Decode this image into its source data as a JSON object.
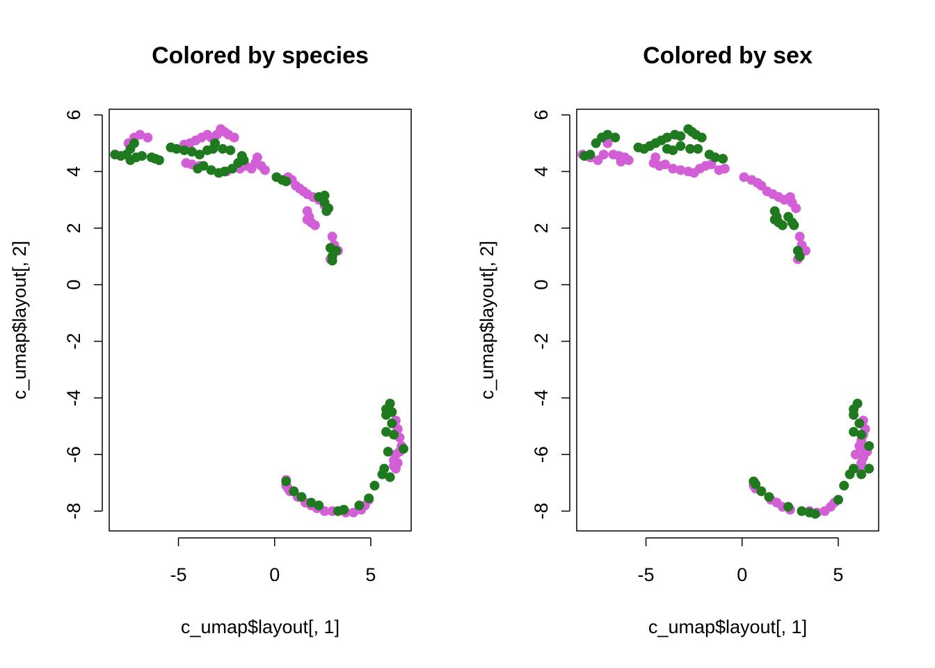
{
  "colors": {
    "magenta": "#D35FD6",
    "green": "#1F7A1F"
  },
  "chart_data": [
    {
      "type": "scatter",
      "title": "Colored by species",
      "xlabel": "c_umap$layout[, 1]",
      "ylabel": "c_umap$layout[, 2]",
      "xlim": [
        -8.6,
        7.1
      ],
      "ylim": [
        -8.7,
        6.2
      ],
      "xticks": [
        -5,
        0,
        5
      ],
      "yticks": [
        -8,
        -6,
        -4,
        -2,
        0,
        2,
        4,
        6
      ],
      "grid": false,
      "series": [
        {
          "color": "magenta",
          "points": [
            [
              -7.6,
              5.0
            ],
            [
              -7.3,
              5.2
            ],
            [
              -7.0,
              5.3
            ],
            [
              -6.6,
              5.2
            ],
            [
              -4.7,
              4.95
            ],
            [
              -4.4,
              5.0
            ],
            [
              -4.1,
              5.1
            ],
            [
              -3.8,
              5.2
            ],
            [
              -3.5,
              5.3
            ],
            [
              -3.3,
              5.2
            ],
            [
              -3.0,
              5.3
            ],
            [
              -2.8,
              5.5
            ],
            [
              -2.6,
              5.4
            ],
            [
              -2.4,
              5.3
            ],
            [
              -2.1,
              5.2
            ],
            [
              -4.6,
              4.3
            ],
            [
              -4.3,
              4.25
            ],
            [
              -3.9,
              4.2
            ],
            [
              -2.5,
              4.0
            ],
            [
              -1.8,
              4.1
            ],
            [
              -1.5,
              4.2
            ],
            [
              -1.2,
              4.1
            ],
            [
              -1.0,
              4.3
            ],
            [
              -0.9,
              4.5
            ],
            [
              -0.7,
              4.2
            ],
            [
              -0.5,
              4.05
            ],
            [
              0.7,
              3.8
            ],
            [
              0.9,
              3.7
            ],
            [
              1.1,
              3.5
            ],
            [
              1.3,
              3.4
            ],
            [
              1.5,
              3.3
            ],
            [
              1.7,
              3.2
            ],
            [
              2.0,
              3.1
            ],
            [
              2.3,
              3.0
            ],
            [
              2.6,
              2.8
            ],
            [
              2.8,
              2.7
            ],
            [
              1.7,
              2.6
            ],
            [
              1.8,
              2.4
            ],
            [
              1.7,
              2.3
            ],
            [
              1.9,
              2.2
            ],
            [
              2.1,
              2.1
            ],
            [
              3.0,
              1.7
            ],
            [
              3.1,
              1.4
            ],
            [
              3.3,
              1.2
            ],
            [
              2.9,
              0.9
            ],
            [
              0.6,
              -6.9
            ],
            [
              0.6,
              -7.1
            ],
            [
              0.7,
              -7.2
            ],
            [
              0.8,
              -7.3
            ],
            [
              1.2,
              -7.5
            ],
            [
              1.6,
              -7.7
            ],
            [
              1.9,
              -7.8
            ],
            [
              2.2,
              -7.9
            ],
            [
              2.6,
              -8.0
            ],
            [
              3.0,
              -8.0
            ],
            [
              3.3,
              -8.0
            ],
            [
              3.7,
              -8.05
            ],
            [
              4.1,
              -8.05
            ],
            [
              4.5,
              -7.95
            ],
            [
              4.7,
              -7.8
            ],
            [
              4.9,
              -7.6
            ],
            [
              6.3,
              -4.8
            ],
            [
              6.4,
              -5.1
            ],
            [
              6.5,
              -5.4
            ],
            [
              6.6,
              -5.7
            ],
            [
              6.5,
              -5.9
            ],
            [
              6.3,
              -6.0
            ],
            [
              6.2,
              -6.2
            ],
            [
              6.4,
              -6.3
            ],
            [
              6.2,
              -6.4
            ],
            [
              6.3,
              -6.5
            ]
          ]
        },
        {
          "color": "green",
          "points": [
            [
              -8.3,
              4.6
            ],
            [
              -8.0,
              4.55
            ],
            [
              -7.7,
              4.6
            ],
            [
              -7.5,
              4.8
            ],
            [
              -7.3,
              5.0
            ],
            [
              -7.2,
              4.5
            ],
            [
              -7.5,
              4.4
            ],
            [
              -6.9,
              4.55
            ],
            [
              -6.4,
              4.5
            ],
            [
              -6.2,
              4.45
            ],
            [
              -6.0,
              4.4
            ],
            [
              -5.4,
              4.85
            ],
            [
              -5.1,
              4.8
            ],
            [
              -4.7,
              4.75
            ],
            [
              -4.3,
              4.7
            ],
            [
              -3.9,
              4.6
            ],
            [
              -3.5,
              4.75
            ],
            [
              -3.2,
              4.8
            ],
            [
              -3.1,
              5.0
            ],
            [
              -2.7,
              4.8
            ],
            [
              -2.3,
              4.75
            ],
            [
              -1.7,
              4.55
            ],
            [
              -4.0,
              4.1
            ],
            [
              -3.7,
              4.2
            ],
            [
              -3.3,
              4.05
            ],
            [
              -2.9,
              3.95
            ],
            [
              -2.6,
              4.0
            ],
            [
              -2.2,
              4.1
            ],
            [
              -1.9,
              4.3
            ],
            [
              -1.6,
              4.4
            ],
            [
              0.1,
              3.8
            ],
            [
              0.4,
              3.7
            ],
            [
              0.6,
              3.65
            ],
            [
              2.3,
              3.1
            ],
            [
              2.6,
              3.15
            ],
            [
              2.6,
              2.9
            ],
            [
              2.8,
              2.7
            ],
            [
              2.7,
              2.6
            ],
            [
              2.9,
              1.3
            ],
            [
              3.2,
              1.2
            ],
            [
              3.0,
              1.0
            ],
            [
              3.0,
              0.85
            ],
            [
              0.6,
              -6.95
            ],
            [
              1.0,
              -7.3
            ],
            [
              1.4,
              -7.5
            ],
            [
              1.9,
              -7.7
            ],
            [
              2.3,
              -7.8
            ],
            [
              3.3,
              -8.0
            ],
            [
              3.6,
              -7.95
            ],
            [
              4.4,
              -7.8
            ],
            [
              4.9,
              -7.55
            ],
            [
              5.2,
              -7.1
            ],
            [
              5.6,
              -6.7
            ],
            [
              5.7,
              -6.5
            ],
            [
              5.9,
              -5.9
            ],
            [
              5.8,
              -5.2
            ],
            [
              6.1,
              -4.9
            ],
            [
              5.8,
              -4.6
            ],
            [
              5.8,
              -4.4
            ],
            [
              6.0,
              -4.2
            ],
            [
              6.1,
              -4.5
            ],
            [
              6.2,
              -5.3
            ],
            [
              6.0,
              -6.8
            ],
            [
              6.7,
              -5.8
            ]
          ]
        }
      ]
    },
    {
      "type": "scatter",
      "title": "Colored by sex",
      "xlabel": "c_umap$layout[, 1]",
      "ylabel": "c_umap$layout[, 2]",
      "xlim": [
        -8.6,
        7.1
      ],
      "ylim": [
        -8.7,
        6.2
      ],
      "xticks": [
        -5,
        0,
        5
      ],
      "yticks": [
        -8,
        -6,
        -4,
        -2,
        0,
        2,
        4,
        6
      ],
      "grid": false,
      "series": [
        {
          "color": "magenta",
          "points": [
            [
              -8.3,
              4.6
            ],
            [
              -7.9,
              4.5
            ],
            [
              -7.5,
              4.4
            ],
            [
              -7.2,
              4.6
            ],
            [
              -7.0,
              5.0
            ],
            [
              -6.7,
              4.6
            ],
            [
              -6.4,
              4.55
            ],
            [
              -6.1,
              4.5
            ],
            [
              -5.9,
              4.4
            ],
            [
              -6.3,
              4.35
            ],
            [
              -4.6,
              4.3
            ],
            [
              -4.3,
              4.2
            ],
            [
              -4.0,
              4.25
            ],
            [
              -3.6,
              4.1
            ],
            [
              -3.2,
              4.05
            ],
            [
              -2.8,
              4.0
            ],
            [
              -2.5,
              3.95
            ],
            [
              -2.2,
              4.1
            ],
            [
              -1.9,
              4.2
            ],
            [
              -1.6,
              4.25
            ],
            [
              -1.2,
              4.05
            ],
            [
              -0.9,
              4.1
            ],
            [
              -4.5,
              4.5
            ],
            [
              0.1,
              3.8
            ],
            [
              0.5,
              3.7
            ],
            [
              0.8,
              3.6
            ],
            [
              1.0,
              3.5
            ],
            [
              1.3,
              3.3
            ],
            [
              1.6,
              3.2
            ],
            [
              1.9,
              3.1
            ],
            [
              2.2,
              3.0
            ],
            [
              2.5,
              3.1
            ],
            [
              2.6,
              2.9
            ],
            [
              2.8,
              2.7
            ],
            [
              3.0,
              1.7
            ],
            [
              3.1,
              1.4
            ],
            [
              3.3,
              1.2
            ],
            [
              2.9,
              0.9
            ],
            [
              2.9,
              1.2
            ],
            [
              0.6,
              -7.1
            ],
            [
              0.7,
              -7.2
            ],
            [
              1.5,
              -7.6
            ],
            [
              1.8,
              -7.7
            ],
            [
              2.1,
              -7.85
            ],
            [
              2.5,
              -7.95
            ],
            [
              3.5,
              -8.0
            ],
            [
              3.9,
              -8.05
            ],
            [
              4.3,
              -8.0
            ],
            [
              4.6,
              -7.85
            ],
            [
              4.8,
              -7.7
            ],
            [
              6.3,
              -4.8
            ],
            [
              6.4,
              -5.1
            ],
            [
              6.3,
              -5.3
            ],
            [
              6.2,
              -5.5
            ],
            [
              6.1,
              -5.7
            ],
            [
              6.3,
              -5.8
            ],
            [
              6.5,
              -5.9
            ],
            [
              6.3,
              -6.1
            ],
            [
              5.9,
              -6.0
            ],
            [
              6.2,
              -6.3
            ],
            [
              6.1,
              -6.5
            ]
          ]
        },
        {
          "color": "green",
          "points": [
            [
              -8.2,
              4.55
            ],
            [
              -7.9,
              4.6
            ],
            [
              -7.6,
              5.0
            ],
            [
              -7.3,
              5.2
            ],
            [
              -7.0,
              5.3
            ],
            [
              -6.6,
              5.2
            ],
            [
              -5.4,
              4.85
            ],
            [
              -5.1,
              4.8
            ],
            [
              -4.8,
              4.9
            ],
            [
              -4.5,
              5.0
            ],
            [
              -4.2,
              5.1
            ],
            [
              -3.9,
              5.2
            ],
            [
              -3.5,
              5.3
            ],
            [
              -3.2,
              5.25
            ],
            [
              -2.8,
              5.5
            ],
            [
              -2.6,
              5.4
            ],
            [
              -2.4,
              5.3
            ],
            [
              -2.1,
              5.2
            ],
            [
              -3.9,
              4.8
            ],
            [
              -3.6,
              4.75
            ],
            [
              -3.2,
              4.9
            ],
            [
              -2.7,
              4.8
            ],
            [
              -2.3,
              4.8
            ],
            [
              -1.7,
              4.6
            ],
            [
              -1.4,
              4.5
            ],
            [
              -1.0,
              4.45
            ],
            [
              1.7,
              2.6
            ],
            [
              1.8,
              2.4
            ],
            [
              1.7,
              2.3
            ],
            [
              1.9,
              2.2
            ],
            [
              2.1,
              2.1
            ],
            [
              2.4,
              2.4
            ],
            [
              2.6,
              2.2
            ],
            [
              2.7,
              2.1
            ],
            [
              2.9,
              1.2
            ],
            [
              3.0,
              1.0
            ],
            [
              0.6,
              -6.95
            ],
            [
              0.7,
              -7.05
            ],
            [
              1.0,
              -7.3
            ],
            [
              1.4,
              -7.5
            ],
            [
              2.4,
              -7.85
            ],
            [
              3.1,
              -8.0
            ],
            [
              3.5,
              -8.05
            ],
            [
              3.8,
              -8.1
            ],
            [
              5.0,
              -7.6
            ],
            [
              5.3,
              -7.1
            ],
            [
              5.6,
              -6.7
            ],
            [
              5.8,
              -6.5
            ],
            [
              5.8,
              -5.2
            ],
            [
              6.1,
              -4.9
            ],
            [
              5.8,
              -4.6
            ],
            [
              5.8,
              -4.4
            ],
            [
              6.0,
              -4.2
            ],
            [
              6.2,
              -5.3
            ],
            [
              6.6,
              -5.7
            ],
            [
              6.6,
              -6.5
            ],
            [
              6.2,
              -6.7
            ]
          ]
        }
      ]
    }
  ]
}
